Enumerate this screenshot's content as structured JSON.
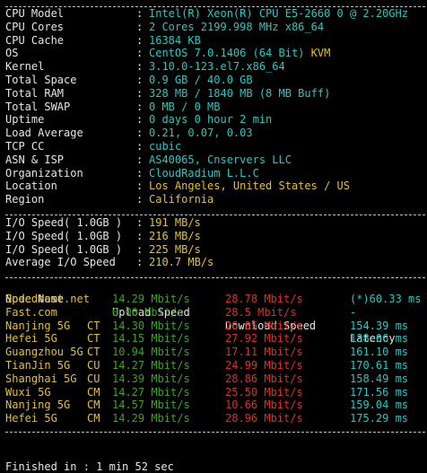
{
  "sysinfo": [
    {
      "key": "CPU Model",
      "value": "Intel(R) Xeon(R) CPU E5-2660 0 @ 2.20GHz",
      "value_extra": ""
    },
    {
      "key": "CPU Cores",
      "value": "2 Cores 2199.998 MHz x86_64",
      "value_extra": ""
    },
    {
      "key": "CPU Cache",
      "value": "16384 KB",
      "value_extra": ""
    },
    {
      "key": "OS",
      "value": "CentOS 7.0.1406 (64 Bit) ",
      "value_extra": "KVM"
    },
    {
      "key": "Kernel",
      "value": "3.10.0-123.el7.x86_64",
      "value_extra": ""
    },
    {
      "key": "Total Space",
      "value": "0.9 GB / 40.0 GB",
      "value_extra": ""
    },
    {
      "key": "Total RAM",
      "value": "328 MB / 1840 MB (8 MB Buff)",
      "value_extra": ""
    },
    {
      "key": "Total SWAP",
      "value": "0 MB / 0 MB",
      "value_extra": ""
    },
    {
      "key": "Uptime",
      "value": "0 days 0 hour 2 min",
      "value_extra": ""
    },
    {
      "key": "Load Average",
      "value": "0.21, 0.07, 0.03",
      "value_extra": ""
    },
    {
      "key": "TCP CC",
      "value": "cubic",
      "value_extra": ""
    },
    {
      "key": "ASN & ISP",
      "value": "AS40065, Cnservers LLC",
      "value_extra": ""
    },
    {
      "key": "Organization",
      "value": "CloudRadium L.L.C",
      "value_extra": ""
    },
    {
      "key": "Location",
      "value": "Los Angeles, United States / US",
      "value_extra": ""
    },
    {
      "key": "Region",
      "value": "California",
      "value_extra": ""
    }
  ],
  "colon": ":",
  "io": [
    {
      "key": "I/O Speed( 1.0GB )",
      "value": "191 MB/s"
    },
    {
      "key": "I/O Speed( 1.0GB )",
      "value": "216 MB/s"
    },
    {
      "key": "I/O Speed( 1.0GB )",
      "value": "225 MB/s"
    },
    {
      "key": "Average I/O Speed",
      "value": "210.7 MB/s"
    }
  ],
  "speed_headers": {
    "node": "Node Name",
    "upload": "Upload Speed",
    "download": "Download Speed",
    "latency": "Latency"
  },
  "speedtest": [
    {
      "node": "Speedtest.net",
      "isp": "",
      "upload": "14.29 Mbit/s",
      "download": "28.78 Mbit/s",
      "latency": "(*)60.33 ms"
    },
    {
      "node": "Fast.com",
      "isp": "",
      "upload": "0.00 Mbit/s",
      "download": "28.5 Mbit/s",
      "latency": "-"
    },
    {
      "node": "Nanjing 5G",
      "isp": "CT",
      "upload": "14.30 Mbit/s",
      "download": "26.85 Mbit/s",
      "latency": "154.39 ms"
    },
    {
      "node": "Hefei 5G",
      "isp": "CT",
      "upload": "14.15 Mbit/s",
      "download": "27.92 Mbit/s",
      "latency": "138.06 ms"
    },
    {
      "node": "Guangzhou 5G",
      "isp": "CT",
      "upload": "10.94 Mbit/s",
      "download": "17.11 Mbit/s",
      "latency": "161.10 ms"
    },
    {
      "node": "TianJin 5G",
      "isp": "CU",
      "upload": "14.27 Mbit/s",
      "download": "24.99 Mbit/s",
      "latency": "170.61 ms"
    },
    {
      "node": "Shanghai 5G",
      "isp": "CU",
      "upload": "14.39 Mbit/s",
      "download": "28.86 Mbit/s",
      "latency": "158.49 ms"
    },
    {
      "node": "Wuxi 5G",
      "isp": "CM",
      "upload": "14.27 Mbit/s",
      "download": "25.50 Mbit/s",
      "latency": "171.56 ms"
    },
    {
      "node": "Nanjing 5G",
      "isp": "CM",
      "upload": "14.57 Mbit/s",
      "download": "10.66 Mbit/s",
      "latency": "159.04 ms"
    },
    {
      "node": "Hefei 5G",
      "isp": "CM",
      "upload": "14.29 Mbit/s",
      "download": "28.96 Mbit/s",
      "latency": "175.29 ms"
    }
  ],
  "tail_text": "Finished in : 1 min 52 sec",
  "colors": {
    "background": "#000000",
    "label": "#e6e6e6",
    "cyan": "#25c9c2",
    "yellow": "#e5c12e",
    "green": "#3aa61c",
    "red": "#e02c2c"
  }
}
